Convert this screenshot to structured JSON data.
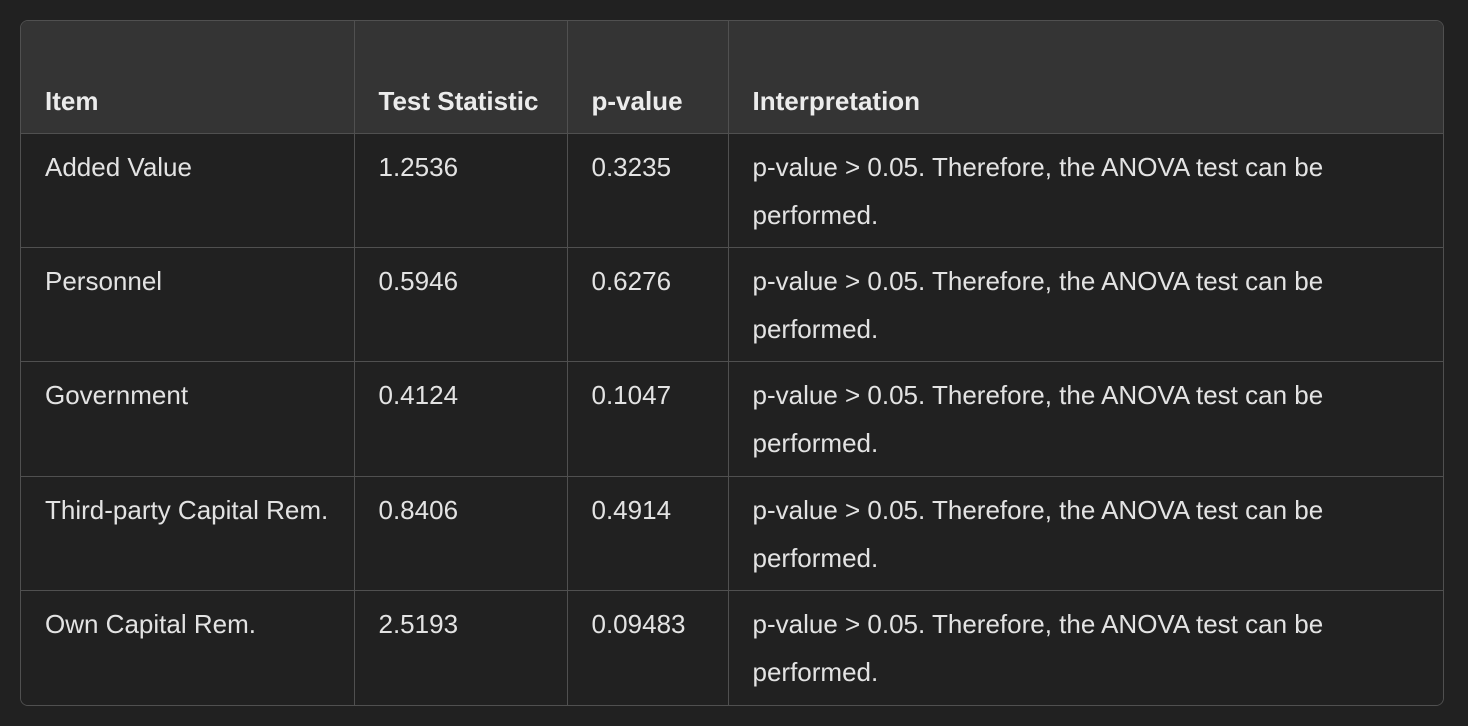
{
  "table": {
    "headers": [
      "Item",
      "Test Statistic",
      "p-value",
      "Interpretation"
    ],
    "rows": [
      {
        "item": "Added Value",
        "statistic": "1.2536",
        "p_value": "0.3235",
        "interpretation": "p-value > 0.05. Therefore, the ANOVA test can be performed."
      },
      {
        "item": "Personnel",
        "statistic": "0.5946",
        "p_value": "0.6276",
        "interpretation": "p-value > 0.05. Therefore, the ANOVA test can be performed."
      },
      {
        "item": "Government",
        "statistic": "0.4124",
        "p_value": "0.1047",
        "interpretation": "p-value > 0.05. Therefore, the ANOVA test can be performed."
      },
      {
        "item": "Third-party Capital Rem.",
        "statistic": "0.8406",
        "p_value": "0.4914",
        "interpretation": "p-value > 0.05. Therefore, the ANOVA test can be performed."
      },
      {
        "item": "Own Capital Rem.",
        "statistic": "2.5193",
        "p_value": "0.09483",
        "interpretation": "p-value > 0.05. Therefore, the ANOVA test can be performed."
      }
    ]
  },
  "colors": {
    "background": "#212121",
    "header_background": "#343434",
    "border": "#505050",
    "text": "#ececec"
  }
}
